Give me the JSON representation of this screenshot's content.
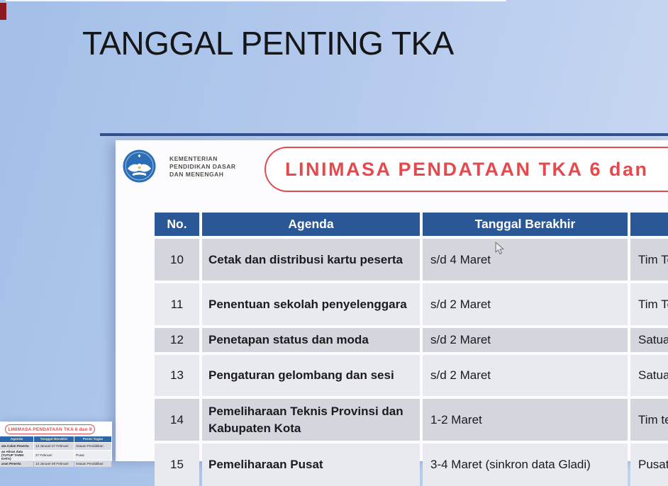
{
  "page": {
    "title": "TANGGAL PENTING TKA"
  },
  "slide": {
    "ministry": {
      "line1": "KEMENTERIAN",
      "line2": "PENDIDIKAN DASAR",
      "line3": "DAN MENENGAH"
    },
    "banner_title": "LINIMASA PENDATAAN TKA 6 dan",
    "table": {
      "headers": [
        "No.",
        "Agenda",
        "Tanggal Berakhir",
        ""
      ],
      "rows": [
        {
          "no": "10",
          "agenda": "Cetak dan distribusi kartu peserta",
          "tanggal": "s/d 4 Maret",
          "peran": "Tim Te"
        },
        {
          "no": "11",
          "agenda": "Penentuan sekolah penyelenggara",
          "tanggal": "s/d 2 Maret",
          "peran": "Tim Te"
        },
        {
          "no": "12",
          "agenda": "Penetapan status dan moda",
          "tanggal": "s/d 2 Maret",
          "peran": "Satua"
        },
        {
          "no": "13",
          "agenda": "Pengaturan gelombang dan sesi",
          "tanggal": "s/d 2 Maret",
          "peran": "Satua"
        },
        {
          "no": "14",
          "agenda": "Pemeliharaan Teknis Provinsi dan Kabupaten Kota",
          "tanggal": "1-2 Maret",
          "peran": "Tim te"
        },
        {
          "no": "15",
          "agenda": "Pemeliharaan Pusat",
          "tanggal": "3-4 Maret (sinkron data Gladi)",
          "peran": "Pusat"
        }
      ]
    }
  },
  "thumbnail": {
    "banner_title": "LINIMASA PENDATAAN TKA 6 dan 9",
    "table": {
      "headers": [
        "Agenda",
        "Tanggal Berakhir",
        "Peran Tugas"
      ],
      "rows": [
        {
          "agenda": "ata Calon Peserta",
          "tanggal": "13 Januari-27 Februari",
          "peran": "Satuan Pendidikan"
        },
        {
          "agenda": "an Aliran data\n(TUTUP TARIK DATA)",
          "tanggal": "27 Februari",
          "peran": "Pusat"
        },
        {
          "agenda": "aran Peserta",
          "tanggal": "13 Januari-28 Februari",
          "peran": "Satuan Pendidikan"
        }
      ]
    }
  },
  "colors": {
    "accent_red": "#E4494D",
    "table_header_blue": "#2A5795",
    "thumb_header_blue": "#2E66AE",
    "navy_line": "#32508C",
    "logo_blue": "#2C6EB5",
    "corner_mark_red": "#8B1B1E",
    "row_dark": "#D4D6DD",
    "row_light": "#E9EAEF",
    "background_blue": "#B3C9EC"
  }
}
